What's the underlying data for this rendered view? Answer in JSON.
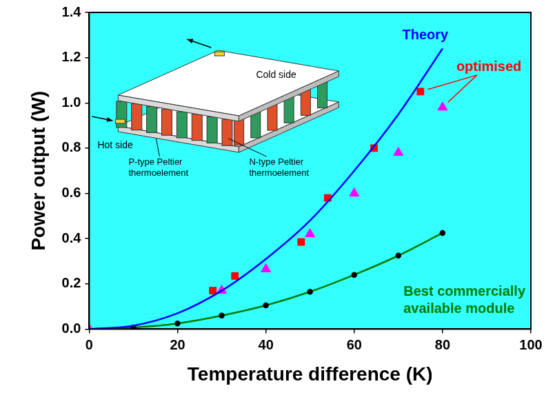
{
  "chart_data": {
    "type": "scatter",
    "x_label": "Temperature difference (K)",
    "y_label": "Power output (W)",
    "xlim": [
      0,
      100
    ],
    "xticks": [
      0,
      20,
      40,
      60,
      80,
      100
    ],
    "ylim": [
      0,
      1.4
    ],
    "yticks": [
      {
        "value": 0,
        "label": "0.0"
      },
      0.2,
      0.4,
      0.6,
      0.8,
      {
        "value": 1,
        "label": "1.0"
      },
      1.2,
      1.4
    ],
    "grid": false,
    "series": [
      {
        "name": "Theory",
        "type": "line",
        "color": "#0000ff",
        "marker": "none",
        "line_style": "solid",
        "x": [
          0,
          10,
          20,
          30,
          40,
          50,
          60,
          70,
          80
        ],
        "values": [
          0,
          0.015,
          0.07,
          0.17,
          0.31,
          0.48,
          0.7,
          0.95,
          1.24
        ]
      },
      {
        "name": "optimised",
        "type": "scatter",
        "color": "#ff0000",
        "marker": "square",
        "x": [
          28,
          33,
          48,
          54,
          64.5,
          75
        ],
        "values": [
          0.17,
          0.235,
          0.385,
          0.58,
          0.8,
          1.05
        ]
      },
      {
        "name": "optimised",
        "type": "scatter",
        "color": "#ff00ff",
        "marker": "triangle",
        "x": [
          0,
          30,
          40,
          50,
          60,
          70,
          80
        ],
        "values": [
          0,
          0.17,
          0.265,
          0.42,
          0.6,
          0.78,
          0.98
        ]
      },
      {
        "name": "Best commercially available module",
        "type": "line",
        "color": "#007a00",
        "marker": "circle",
        "line_style": "solid",
        "x": [
          0,
          10,
          20,
          30,
          40,
          50,
          60,
          70,
          80
        ],
        "values": [
          0,
          0.007,
          0.025,
          0.06,
          0.105,
          0.165,
          0.24,
          0.325,
          0.425
        ]
      }
    ],
    "inset_labels": [
      "Cold side",
      "Hot side",
      "P-type Peltier thermoelement",
      "N-type Peltier thermoelement"
    ]
  }
}
